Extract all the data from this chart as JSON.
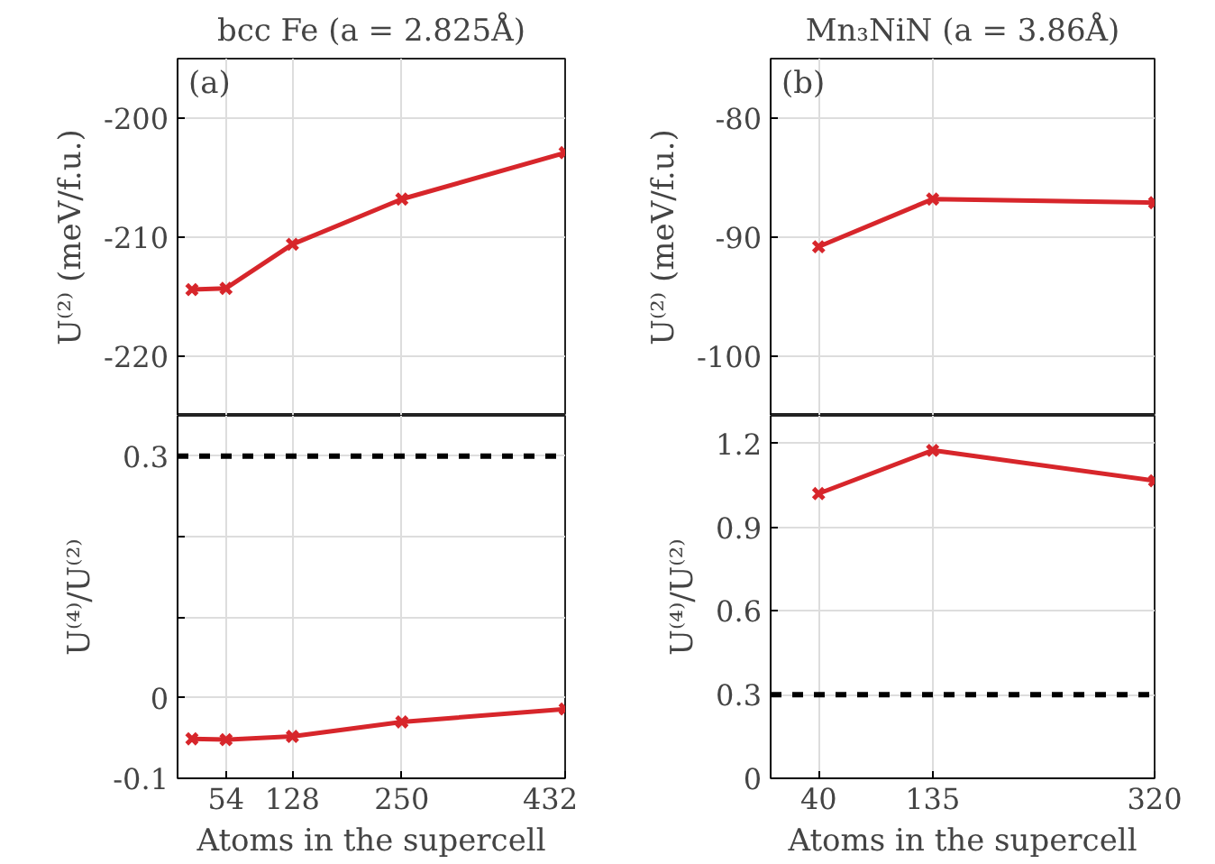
{
  "chart_data": [
    {
      "type": "line",
      "title": "bcc Fe (a = 2.825Å)",
      "ylabel": "U⁽²⁾ (meV/f.u.)",
      "annotations": [
        "(a)"
      ],
      "x": [
        16,
        54,
        128,
        250,
        432
      ],
      "xlim": [
        0,
        432
      ],
      "xticks": [
        54,
        128,
        250,
        432
      ],
      "ylim": [
        -225,
        -195
      ],
      "yticks": [
        -220,
        -210,
        -200
      ],
      "tick_labels": "y",
      "grid": true,
      "marker": "cross",
      "line_style": "solid",
      "series": [
        {
          "color": "#d7262b",
          "values": [
            -214.4,
            -214.3,
            -210.6,
            -206.8,
            -202.9
          ]
        }
      ]
    },
    {
      "type": "line",
      "title": "Mn₃NiN (a = 3.86Å)",
      "ylabel": "U⁽²⁾ (meV/f.u.)",
      "annotations": [
        "(b)"
      ],
      "x": [
        40,
        135,
        320
      ],
      "xlim": [
        0,
        320
      ],
      "xticks": [
        40,
        135,
        320
      ],
      "ylim": [
        -105,
        -75
      ],
      "yticks": [
        -100,
        -90,
        -80
      ],
      "tick_labels": "y",
      "grid": true,
      "marker": "cross",
      "line_style": "solid",
      "series": [
        {
          "color": "#d7262b",
          "values": [
            -90.8,
            -86.8,
            -87.1
          ]
        }
      ]
    },
    {
      "type": "line",
      "xlabel": "Atoms in the supercell",
      "ylabel": "U⁽⁴⁾/U⁽²⁾",
      "x": [
        16,
        54,
        128,
        250,
        432
      ],
      "xlim": [
        0,
        432
      ],
      "xticks": [
        54,
        128,
        250,
        432
      ],
      "ylim": [
        -0.1,
        0.35
      ],
      "yticks": [
        -0.1,
        0,
        {
          "value": 0.1,
          "label": null
        },
        {
          "value": 0.2,
          "label": null
        },
        0.3
      ],
      "grid": true,
      "marker": "cross",
      "line_style": "solid",
      "ref_lines": [
        {
          "axis": "y",
          "value": 0.3,
          "color": "#000000",
          "line_style": "dashed"
        }
      ],
      "series": [
        {
          "color": "#d7262b",
          "values": [
            -0.051,
            -0.052,
            -0.048,
            -0.03,
            -0.014
          ]
        }
      ]
    },
    {
      "type": "line",
      "xlabel": "Atoms in the supercell",
      "ylabel": "U⁽⁴⁾/U⁽²⁾",
      "x": [
        40,
        135,
        320
      ],
      "xlim": [
        0,
        320
      ],
      "xticks": [
        40,
        135,
        320
      ],
      "ylim": [
        0,
        1.3
      ],
      "yticks": [
        0,
        0.3,
        0.6,
        0.9,
        1.2
      ],
      "grid": true,
      "marker": "cross",
      "line_style": "solid",
      "ref_lines": [
        {
          "axis": "y",
          "value": 0.3,
          "color": "#000000",
          "line_style": "dashed"
        }
      ],
      "series": [
        {
          "color": "#d7262b",
          "values": [
            1.021,
            1.176,
            1.067
          ]
        }
      ]
    }
  ]
}
